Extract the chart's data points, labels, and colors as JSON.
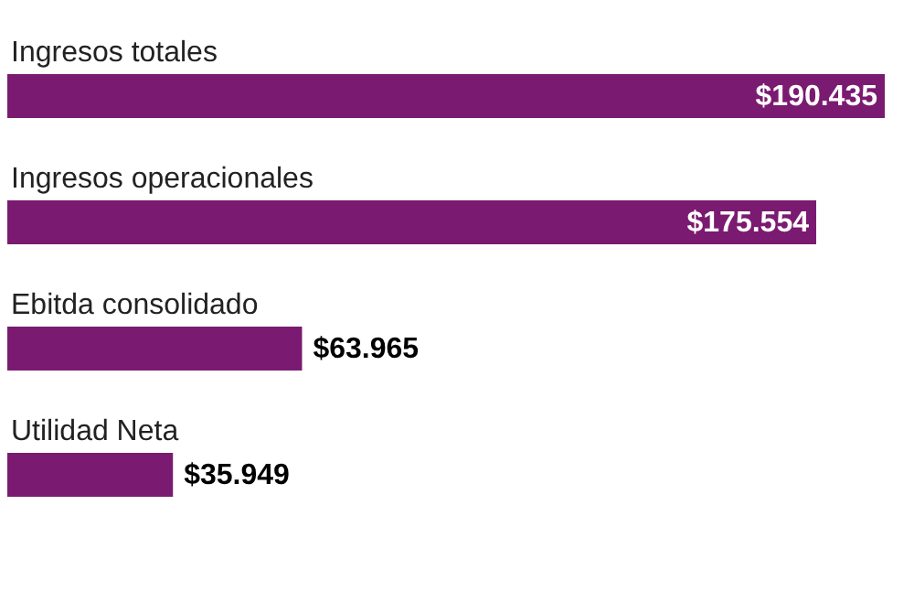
{
  "chart_data": {
    "type": "bar",
    "orientation": "horizontal",
    "categories": [
      "Ingresos totales",
      "Ingresos operacionales",
      "Ebitda consolidado",
      "Utilidad Neta"
    ],
    "values": [
      190435,
      175554,
      63965,
      35949
    ],
    "value_labels": [
      "$190.435",
      "$175.554",
      "$63.965",
      "$35.949"
    ],
    "color": "#7a1a70"
  }
}
